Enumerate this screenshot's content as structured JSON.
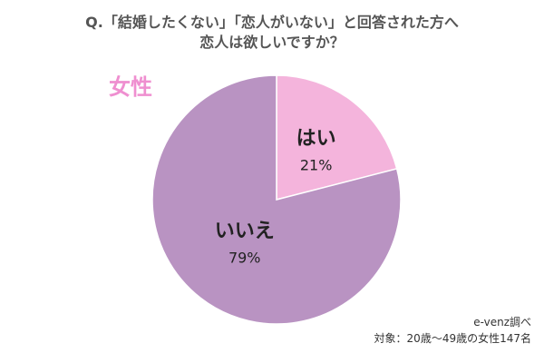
{
  "title": {
    "line1": "Q.「結婚したくない」「恋人がいない」と回答された方へ",
    "line2": "恋人は欲しいですか？"
  },
  "group_label": "女性",
  "colors": {
    "accent": "#ef8fd0",
    "yes": "#f4b4dc",
    "no": "#b993c2"
  },
  "source": {
    "credit": "e-venz調べ",
    "sample": "対象：20歳〜49歳の女性147名"
  },
  "chart_data": {
    "type": "pie",
    "slices": [
      {
        "label": "はい",
        "value": 21,
        "value_text": "21%",
        "color": "#f4b4dc"
      },
      {
        "label": "いいえ",
        "value": 79,
        "value_text": "79%",
        "color": "#b993c2"
      }
    ]
  }
}
